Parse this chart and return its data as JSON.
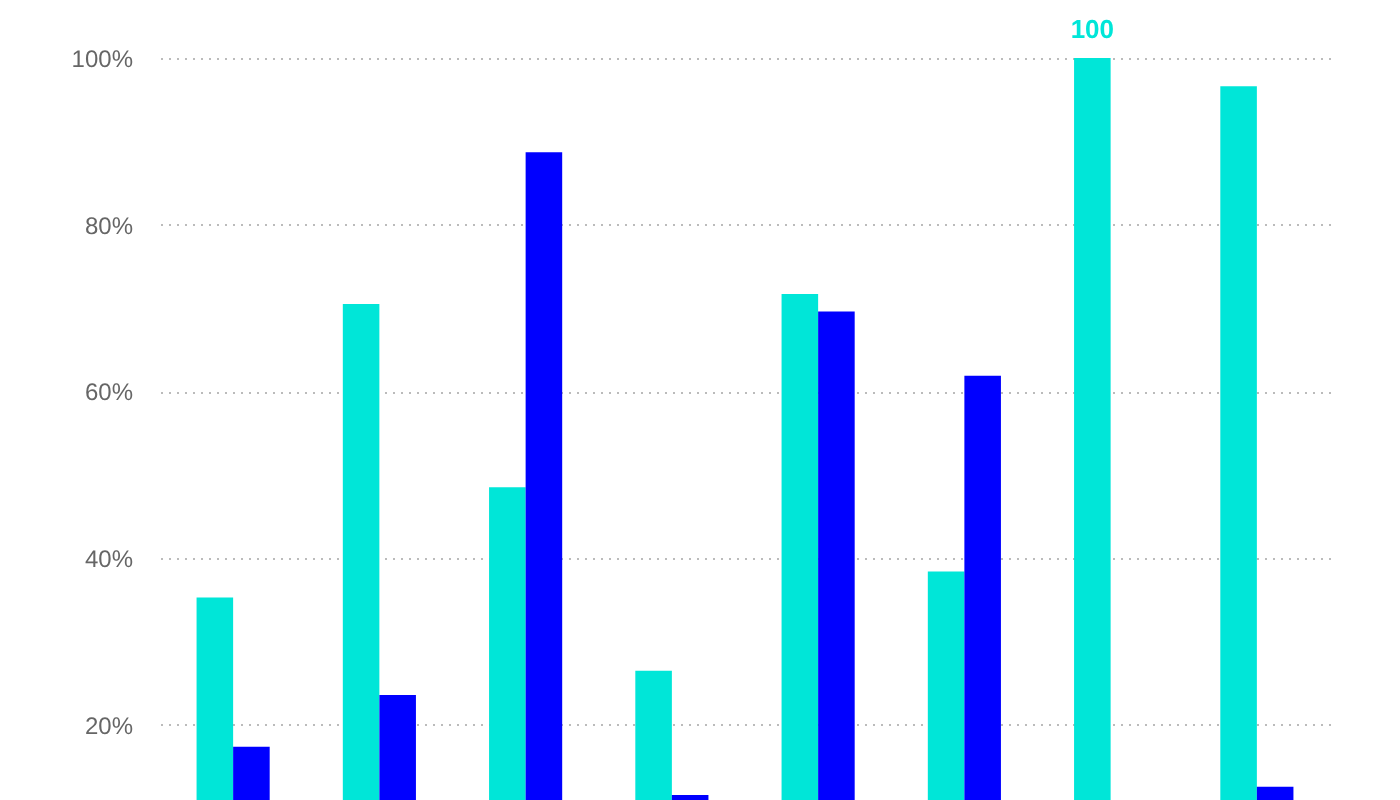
{
  "chart_data": {
    "type": "bar",
    "categories": [
      null,
      null,
      null,
      null,
      null,
      null,
      null,
      null
    ],
    "series": [
      {
        "color": "#00e6d8",
        "values": [
          35.3,
          70.5,
          48.5,
          26.5,
          71.7,
          38.4,
          100,
          96.6
        ],
        "value_labels": [
          null,
          null,
          null,
          null,
          null,
          null,
          "100",
          null
        ]
      },
      {
        "color": "#0000ff",
        "values": [
          17.4,
          23.6,
          88.7,
          11.6,
          69.6,
          61.9,
          null,
          12.6
        ]
      }
    ],
    "ylim": [
      11,
      100
    ],
    "yticks": [
      {
        "value": 20,
        "label": "20%"
      },
      {
        "value": 40,
        "label": "40%"
      },
      {
        "value": 60,
        "label": "60%"
      },
      {
        "value": 80,
        "label": "80%"
      },
      {
        "value": 100,
        "label": "100%"
      }
    ],
    "grid": "y",
    "legend": false,
    "tick_labels": "y"
  }
}
